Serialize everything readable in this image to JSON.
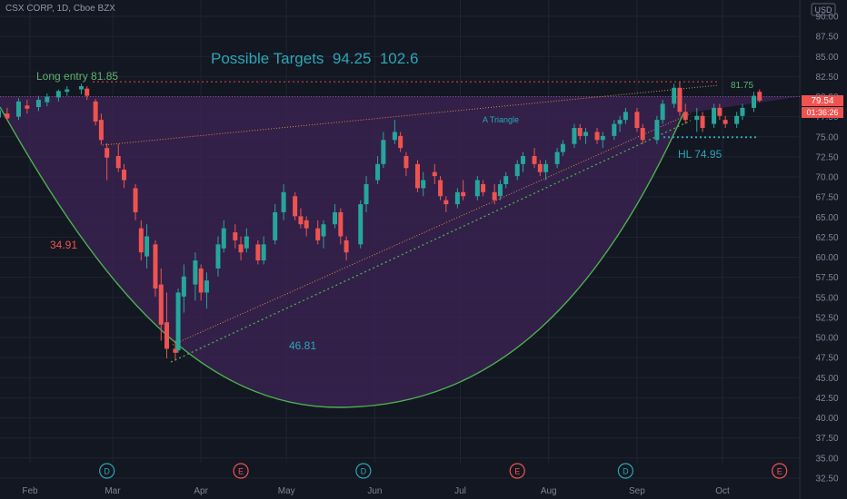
{
  "header": {
    "symbol": "CSX CORP, 1D, Cboe BZX"
  },
  "currency_label": "USD",
  "price_badges": {
    "last": "79.54",
    "countdown": "01:36:26"
  },
  "colors": {
    "background": "#131722",
    "up": "#26a69a",
    "down": "#ef5350",
    "shading": "#3b2353",
    "curve": "#4caf50",
    "teal_text": "#2ba6b5",
    "green_text": "#5bb46b",
    "red_text": "#ef5350"
  },
  "chart_data": {
    "type": "candlestick",
    "title": "Possible Targets  94.25  102.6",
    "ylim": [
      32.5,
      90
    ],
    "y_ticks": [
      "90.00",
      "87.50",
      "85.00",
      "82.50",
      "80.00",
      "77.50",
      "75.00",
      "72.50",
      "70.00",
      "67.50",
      "65.00",
      "62.50",
      "60.00",
      "57.50",
      "55.00",
      "52.50",
      "50.00",
      "47.50",
      "45.00",
      "42.50",
      "40.00",
      "37.50",
      "35.00",
      "32.50"
    ],
    "x_ticks": [
      "Feb",
      "Mar",
      "Apr",
      "May",
      "Jun",
      "Jul",
      "Aug",
      "Sep",
      "Oct"
    ],
    "x_tick_dates": [
      "2020-02-01",
      "2020-03-01",
      "2020-04-01",
      "2020-05-01",
      "2020-06-01",
      "2020-07-01",
      "2020-08-01",
      "2020-09-01",
      "2020-10-01"
    ],
    "date_range": [
      "2020-01-13",
      "2020-10-14"
    ],
    "candles": [
      {
        "d": "2020-01-13",
        "o": 76.0,
        "h": 77.2,
        "l": 74.4,
        "c": 76.6
      },
      {
        "d": "2020-01-16",
        "o": 76.4,
        "h": 78.0,
        "l": 75.9,
        "c": 77.6
      },
      {
        "d": "2020-01-21",
        "o": 77.4,
        "h": 78.9,
        "l": 76.7,
        "c": 78.3
      },
      {
        "d": "2020-01-24",
        "o": 77.9,
        "h": 78.6,
        "l": 77.0,
        "c": 77.3
      },
      {
        "d": "2020-01-28",
        "o": 77.5,
        "h": 79.8,
        "l": 77.1,
        "c": 79.4
      },
      {
        "d": "2020-01-31",
        "o": 78.9,
        "h": 79.6,
        "l": 77.9,
        "c": 78.5
      },
      {
        "d": "2020-02-04",
        "o": 78.7,
        "h": 80.1,
        "l": 78.2,
        "c": 79.6
      },
      {
        "d": "2020-02-07",
        "o": 79.3,
        "h": 80.4,
        "l": 78.8,
        "c": 80.0
      },
      {
        "d": "2020-02-11",
        "o": 79.9,
        "h": 80.9,
        "l": 79.4,
        "c": 80.7
      },
      {
        "d": "2020-02-14",
        "o": 80.6,
        "h": 81.3,
        "l": 80.1,
        "c": 80.9
      },
      {
        "d": "2020-02-19",
        "o": 80.9,
        "h": 81.6,
        "l": 80.3,
        "c": 81.3
      },
      {
        "d": "2020-02-21",
        "o": 81.0,
        "h": 81.3,
        "l": 79.6,
        "c": 80.1
      },
      {
        "d": "2020-02-24",
        "o": 79.4,
        "h": 79.7,
        "l": 76.4,
        "c": 76.9
      },
      {
        "d": "2020-02-26",
        "o": 77.1,
        "h": 77.9,
        "l": 74.0,
        "c": 74.6
      },
      {
        "d": "2020-02-28",
        "o": 73.6,
        "h": 74.2,
        "l": 69.6,
        "c": 72.4
      },
      {
        "d": "2020-03-03",
        "o": 72.6,
        "h": 74.1,
        "l": 70.6,
        "c": 71.1
      },
      {
        "d": "2020-03-05",
        "o": 70.9,
        "h": 71.6,
        "l": 68.6,
        "c": 69.6
      },
      {
        "d": "2020-03-09",
        "o": 68.6,
        "h": 69.1,
        "l": 64.6,
        "c": 65.6
      },
      {
        "d": "2020-03-11",
        "o": 63.6,
        "h": 64.6,
        "l": 59.6,
        "c": 60.6
      },
      {
        "d": "2020-03-13",
        "o": 60.1,
        "h": 64.1,
        "l": 58.6,
        "c": 62.6
      },
      {
        "d": "2020-03-16",
        "o": 61.6,
        "h": 62.1,
        "l": 55.1,
        "c": 56.1
      },
      {
        "d": "2020-03-18",
        "o": 56.6,
        "h": 58.6,
        "l": 49.6,
        "c": 51.6
      },
      {
        "d": "2020-03-20",
        "o": 51.9,
        "h": 55.6,
        "l": 47.4,
        "c": 48.6
      },
      {
        "d": "2020-03-23",
        "o": 48.6,
        "h": 49.6,
        "l": 47.1,
        "c": 48.1
      },
      {
        "d": "2020-03-24",
        "o": 48.4,
        "h": 56.1,
        "l": 48.1,
        "c": 55.6
      },
      {
        "d": "2020-03-26",
        "o": 55.1,
        "h": 59.1,
        "l": 53.1,
        "c": 57.6
      },
      {
        "d": "2020-03-30",
        "o": 56.6,
        "h": 60.6,
        "l": 54.6,
        "c": 59.6
      },
      {
        "d": "2020-04-01",
        "o": 58.6,
        "h": 59.1,
        "l": 54.6,
        "c": 55.6
      },
      {
        "d": "2020-04-03",
        "o": 55.6,
        "h": 58.1,
        "l": 53.6,
        "c": 57.1
      },
      {
        "d": "2020-04-07",
        "o": 58.6,
        "h": 62.6,
        "l": 57.6,
        "c": 61.6
      },
      {
        "d": "2020-04-09",
        "o": 61.1,
        "h": 64.6,
        "l": 60.6,
        "c": 63.6
      },
      {
        "d": "2020-04-13",
        "o": 63.1,
        "h": 64.1,
        "l": 61.1,
        "c": 62.1
      },
      {
        "d": "2020-04-15",
        "o": 61.6,
        "h": 62.6,
        "l": 59.6,
        "c": 60.6
      },
      {
        "d": "2020-04-17",
        "o": 61.1,
        "h": 63.6,
        "l": 60.6,
        "c": 62.6
      },
      {
        "d": "2020-04-21",
        "o": 61.6,
        "h": 62.1,
        "l": 59.1,
        "c": 59.6
      },
      {
        "d": "2020-04-23",
        "o": 59.6,
        "h": 62.6,
        "l": 59.1,
        "c": 61.6
      },
      {
        "d": "2020-04-27",
        "o": 62.1,
        "h": 66.6,
        "l": 61.6,
        "c": 65.6
      },
      {
        "d": "2020-04-30",
        "o": 65.6,
        "h": 69.1,
        "l": 64.6,
        "c": 68.1
      },
      {
        "d": "2020-05-04",
        "o": 67.6,
        "h": 68.1,
        "l": 64.6,
        "c": 65.1
      },
      {
        "d": "2020-05-06",
        "o": 65.1,
        "h": 66.1,
        "l": 63.6,
        "c": 64.1
      },
      {
        "d": "2020-05-08",
        "o": 64.6,
        "h": 65.1,
        "l": 62.6,
        "c": 63.6
      },
      {
        "d": "2020-05-12",
        "o": 63.6,
        "h": 64.6,
        "l": 61.6,
        "c": 62.1
      },
      {
        "d": "2020-05-14",
        "o": 62.6,
        "h": 64.6,
        "l": 61.1,
        "c": 64.1
      },
      {
        "d": "2020-05-18",
        "o": 64.1,
        "h": 66.6,
        "l": 63.6,
        "c": 65.6
      },
      {
        "d": "2020-05-20",
        "o": 65.6,
        "h": 66.1,
        "l": 61.6,
        "c": 62.6
      },
      {
        "d": "2020-05-22",
        "o": 62.1,
        "h": 62.6,
        "l": 59.6,
        "c": 60.6
      },
      {
        "d": "2020-05-27",
        "o": 61.6,
        "h": 67.1,
        "l": 61.1,
        "c": 66.6
      },
      {
        "d": "2020-05-29",
        "o": 66.6,
        "h": 70.1,
        "l": 65.6,
        "c": 69.1
      },
      {
        "d": "2020-06-02",
        "o": 69.6,
        "h": 72.6,
        "l": 69.1,
        "c": 71.6
      },
      {
        "d": "2020-06-04",
        "o": 71.6,
        "h": 75.6,
        "l": 71.1,
        "c": 74.6
      },
      {
        "d": "2020-06-08",
        "o": 74.6,
        "h": 77.1,
        "l": 74.1,
        "c": 75.6
      },
      {
        "d": "2020-06-10",
        "o": 75.1,
        "h": 75.6,
        "l": 73.1,
        "c": 73.6
      },
      {
        "d": "2020-06-12",
        "o": 72.6,
        "h": 73.1,
        "l": 70.1,
        "c": 71.1
      },
      {
        "d": "2020-06-16",
        "o": 71.6,
        "h": 72.1,
        "l": 68.1,
        "c": 68.6
      },
      {
        "d": "2020-06-18",
        "o": 68.6,
        "h": 70.6,
        "l": 67.6,
        "c": 69.6
      },
      {
        "d": "2020-06-22",
        "o": 70.6,
        "h": 71.6,
        "l": 69.1,
        "c": 70.1
      },
      {
        "d": "2020-06-24",
        "o": 69.6,
        "h": 70.1,
        "l": 67.1,
        "c": 67.6
      },
      {
        "d": "2020-06-26",
        "o": 67.1,
        "h": 67.6,
        "l": 65.6,
        "c": 66.6
      },
      {
        "d": "2020-06-30",
        "o": 66.6,
        "h": 68.6,
        "l": 66.1,
        "c": 68.1
      },
      {
        "d": "2020-07-02",
        "o": 68.1,
        "h": 69.6,
        "l": 67.1,
        "c": 67.6
      },
      {
        "d": "2020-07-07",
        "o": 67.6,
        "h": 70.1,
        "l": 67.1,
        "c": 69.6
      },
      {
        "d": "2020-07-09",
        "o": 69.1,
        "h": 69.6,
        "l": 67.6,
        "c": 68.1
      },
      {
        "d": "2020-07-13",
        "o": 68.1,
        "h": 69.1,
        "l": 66.6,
        "c": 67.1
      },
      {
        "d": "2020-07-15",
        "o": 67.6,
        "h": 69.6,
        "l": 67.1,
        "c": 69.1
      },
      {
        "d": "2020-07-17",
        "o": 69.1,
        "h": 70.6,
        "l": 68.6,
        "c": 70.1
      },
      {
        "d": "2020-07-21",
        "o": 70.1,
        "h": 72.1,
        "l": 69.6,
        "c": 71.6
      },
      {
        "d": "2020-07-23",
        "o": 71.6,
        "h": 73.1,
        "l": 70.6,
        "c": 72.6
      },
      {
        "d": "2020-07-27",
        "o": 72.6,
        "h": 73.6,
        "l": 71.1,
        "c": 71.6
      },
      {
        "d": "2020-07-29",
        "o": 71.6,
        "h": 72.1,
        "l": 70.1,
        "c": 70.6
      },
      {
        "d": "2020-07-31",
        "o": 70.6,
        "h": 72.1,
        "l": 69.6,
        "c": 71.6
      },
      {
        "d": "2020-08-04",
        "o": 71.6,
        "h": 73.6,
        "l": 71.1,
        "c": 73.1
      },
      {
        "d": "2020-08-06",
        "o": 73.1,
        "h": 74.6,
        "l": 72.6,
        "c": 74.1
      },
      {
        "d": "2020-08-10",
        "o": 74.1,
        "h": 76.6,
        "l": 73.6,
        "c": 76.1
      },
      {
        "d": "2020-08-12",
        "o": 76.1,
        "h": 76.6,
        "l": 74.6,
        "c": 75.1
      },
      {
        "d": "2020-08-14",
        "o": 75.1,
        "h": 76.1,
        "l": 74.1,
        "c": 75.6
      },
      {
        "d": "2020-08-18",
        "o": 75.6,
        "h": 76.1,
        "l": 74.1,
        "c": 74.6
      },
      {
        "d": "2020-08-20",
        "o": 74.6,
        "h": 75.6,
        "l": 73.6,
        "c": 75.1
      },
      {
        "d": "2020-08-24",
        "o": 75.1,
        "h": 77.1,
        "l": 74.6,
        "c": 76.6
      },
      {
        "d": "2020-08-26",
        "o": 76.6,
        "h": 77.6,
        "l": 75.6,
        "c": 77.1
      },
      {
        "d": "2020-08-28",
        "o": 77.1,
        "h": 78.6,
        "l": 76.6,
        "c": 78.1
      },
      {
        "d": "2020-09-01",
        "o": 78.1,
        "h": 78.6,
        "l": 75.6,
        "c": 76.1
      },
      {
        "d": "2020-09-03",
        "o": 76.1,
        "h": 76.6,
        "l": 74.1,
        "c": 74.6
      },
      {
        "d": "2020-09-08",
        "o": 74.6,
        "h": 77.6,
        "l": 74.1,
        "c": 77.1
      },
      {
        "d": "2020-09-10",
        "o": 77.1,
        "h": 79.6,
        "l": 76.6,
        "c": 79.1
      },
      {
        "d": "2020-09-14",
        "o": 79.1,
        "h": 81.6,
        "l": 78.6,
        "c": 81.1
      },
      {
        "d": "2020-09-16",
        "o": 81.1,
        "h": 81.8,
        "l": 77.6,
        "c": 78.1
      },
      {
        "d": "2020-09-18",
        "o": 78.1,
        "h": 79.1,
        "l": 76.6,
        "c": 77.1
      },
      {
        "d": "2020-09-22",
        "o": 77.1,
        "h": 78.6,
        "l": 75.6,
        "c": 77.6
      },
      {
        "d": "2020-09-24",
        "o": 77.6,
        "h": 78.1,
        "l": 75.6,
        "c": 76.1
      },
      {
        "d": "2020-09-28",
        "o": 76.6,
        "h": 79.1,
        "l": 76.1,
        "c": 78.6
      },
      {
        "d": "2020-09-30",
        "o": 78.6,
        "h": 79.1,
        "l": 77.1,
        "c": 77.6
      },
      {
        "d": "2020-10-02",
        "o": 77.1,
        "h": 77.6,
        "l": 76.1,
        "c": 76.6
      },
      {
        "d": "2020-10-06",
        "o": 76.6,
        "h": 78.1,
        "l": 76.1,
        "c": 77.6
      },
      {
        "d": "2020-10-08",
        "o": 77.6,
        "h": 79.1,
        "l": 77.1,
        "c": 78.6
      },
      {
        "d": "2020-10-12",
        "o": 78.6,
        "h": 80.6,
        "l": 78.1,
        "c": 80.1
      },
      {
        "d": "2020-10-14",
        "o": 80.6,
        "h": 80.9,
        "l": 79.3,
        "c": 79.5
      }
    ],
    "annotations": [
      {
        "id": "long_entry",
        "text": "Long entry 81.85",
        "value": 81.85,
        "color": "#5bb46b"
      },
      {
        "id": "value_3491",
        "text": "34.91",
        "color": "#ef5350"
      },
      {
        "id": "value_4681",
        "text": "46.81",
        "color": "#2ba6b5"
      },
      {
        "id": "triangle",
        "text": "A Triangle",
        "color": "#2ba6b5"
      },
      {
        "id": "value_8175",
        "text": "81.75",
        "color": "#5bb46b"
      },
      {
        "id": "hl",
        "text": "HL 74.95",
        "value": 74.95,
        "color": "#2ba6b5"
      }
    ],
    "events": [
      {
        "label": "D",
        "d": "2020-02-28",
        "color": "#2ba6b5"
      },
      {
        "label": "E",
        "d": "2020-04-15",
        "color": "#ef5350"
      },
      {
        "label": "D",
        "d": "2020-05-28",
        "color": "#2ba6b5"
      },
      {
        "label": "E",
        "d": "2020-07-21",
        "color": "#ef5350"
      },
      {
        "label": "D",
        "d": "2020-08-28",
        "color": "#2ba6b5"
      },
      {
        "label": "E",
        "d": "2020-10-21",
        "color": "#ef5350"
      }
    ]
  }
}
